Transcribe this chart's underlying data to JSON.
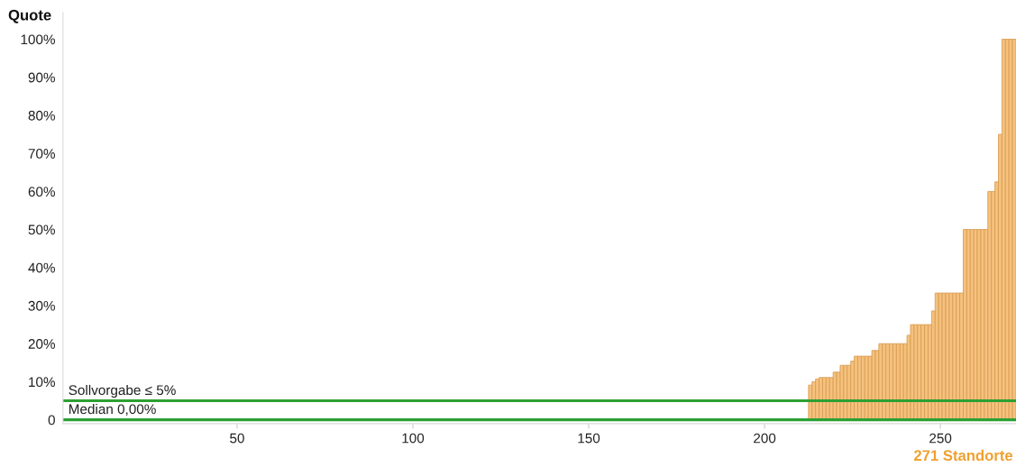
{
  "chart_data": {
    "type": "bar",
    "ylabel": "Quote",
    "xlabel": "271 Standorte",
    "x": [
      1,
      2,
      3,
      4,
      5,
      6,
      7,
      8,
      9,
      10,
      11,
      12,
      13,
      14,
      15,
      16,
      17,
      18,
      19,
      20,
      21,
      22,
      23,
      24,
      25,
      26,
      27,
      28,
      29,
      30,
      31,
      32,
      33,
      34,
      35,
      36,
      37,
      38,
      39,
      40,
      41,
      42,
      43,
      44,
      45,
      46,
      47,
      48,
      49,
      50,
      51,
      52,
      53,
      54,
      55,
      56,
      57,
      58,
      59,
      60,
      61,
      62,
      63,
      64,
      65,
      66,
      67,
      68,
      69,
      70,
      71,
      72,
      73,
      74,
      75,
      76,
      77,
      78,
      79,
      80,
      81,
      82,
      83,
      84,
      85,
      86,
      87,
      88,
      89,
      90,
      91,
      92,
      93,
      94,
      95,
      96,
      97,
      98,
      99,
      100,
      101,
      102,
      103,
      104,
      105,
      106,
      107,
      108,
      109,
      110,
      111,
      112,
      113,
      114,
      115,
      116,
      117,
      118,
      119,
      120,
      121,
      122,
      123,
      124,
      125,
      126,
      127,
      128,
      129,
      130,
      131,
      132,
      133,
      134,
      135,
      136,
      137,
      138,
      139,
      140,
      141,
      142,
      143,
      144,
      145,
      146,
      147,
      148,
      149,
      150,
      151,
      152,
      153,
      154,
      155,
      156,
      157,
      158,
      159,
      160,
      161,
      162,
      163,
      164,
      165,
      166,
      167,
      168,
      169,
      170,
      171,
      172,
      173,
      174,
      175,
      176,
      177,
      178,
      179,
      180,
      181,
      182,
      183,
      184,
      185,
      186,
      187,
      188,
      189,
      190,
      191,
      192,
      193,
      194,
      195,
      196,
      197,
      198,
      199,
      200,
      201,
      202,
      203,
      204,
      205,
      206,
      207,
      208,
      209,
      210,
      211,
      212,
      213,
      214,
      215,
      216,
      217,
      218,
      219,
      220,
      221,
      222,
      223,
      224,
      225,
      226,
      227,
      228,
      229,
      230,
      231,
      232,
      233,
      234,
      235,
      236,
      237,
      238,
      239,
      240,
      241,
      242,
      243,
      244,
      245,
      246,
      247,
      248,
      249,
      250,
      251,
      252,
      253,
      254,
      255,
      256,
      257,
      258,
      259,
      260,
      261,
      262,
      263,
      264,
      265,
      266,
      267,
      268,
      269,
      270,
      271
    ],
    "values": [
      0,
      0,
      0,
      0,
      0,
      0,
      0,
      0,
      0,
      0,
      0,
      0,
      0,
      0,
      0,
      0,
      0,
      0,
      0,
      0,
      0,
      0,
      0,
      0,
      0,
      0,
      0,
      0,
      0,
      0,
      0,
      0,
      0,
      0,
      0,
      0,
      0,
      0,
      0,
      0,
      0,
      0,
      0,
      0,
      0,
      0,
      0,
      0,
      0,
      0,
      0,
      0,
      0,
      0,
      0,
      0,
      0,
      0,
      0,
      0,
      0,
      0,
      0,
      0,
      0,
      0,
      0,
      0,
      0,
      0,
      0,
      0,
      0,
      0,
      0,
      0,
      0,
      0,
      0,
      0,
      0,
      0,
      0,
      0,
      0,
      0,
      0,
      0,
      0,
      0,
      0,
      0,
      0,
      0,
      0,
      0,
      0,
      0,
      0,
      0,
      0,
      0,
      0,
      0,
      0,
      0,
      0,
      0,
      0,
      0,
      0,
      0,
      0,
      0,
      0,
      0,
      0,
      0,
      0,
      0,
      0,
      0,
      0,
      0,
      0,
      0,
      0,
      0,
      0,
      0,
      0,
      0,
      0,
      0,
      0,
      0,
      0,
      0,
      0,
      0,
      0,
      0,
      0,
      0,
      0,
      0,
      0,
      0,
      0,
      0,
      0,
      0,
      0,
      0,
      0,
      0,
      0,
      0,
      0,
      0,
      0,
      0,
      0,
      0,
      0,
      0,
      0,
      0,
      0,
      0,
      0,
      0,
      0,
      0,
      0,
      0,
      0,
      0,
      0,
      0,
      0,
      0,
      0,
      0,
      0,
      0,
      0,
      0,
      0,
      0,
      0,
      0,
      0,
      0,
      0,
      0,
      0,
      0,
      0,
      0,
      0,
      0,
      0,
      0,
      0,
      0,
      0,
      0,
      0,
      0,
      0,
      0,
      9.1,
      10,
      10.7,
      11.1,
      11.1,
      11.1,
      11.1,
      12.5,
      12.5,
      14.3,
      14.3,
      14.3,
      15.4,
      16.7,
      16.7,
      16.7,
      16.7,
      16.7,
      18.2,
      18.2,
      20,
      20,
      20,
      20,
      20,
      20,
      20,
      20,
      22.2,
      25,
      25,
      25,
      25,
      25,
      25,
      28.6,
      33.3,
      33.3,
      33.3,
      33.3,
      33.3,
      33.3,
      33.3,
      33.3,
      50,
      50,
      50,
      50,
      50,
      50,
      50,
      60,
      60,
      62.5,
      75,
      100,
      100,
      100,
      100
    ],
    "color": "#f5c27e",
    "xlim": [
      0.5,
      271.5
    ],
    "ylim": [
      -1,
      107
    ],
    "xticks": [
      50,
      100,
      150,
      200,
      250
    ],
    "yticks": [
      0,
      {
        "value": 10,
        "label": "10%"
      },
      {
        "value": 20,
        "label": "20%"
      },
      {
        "value": 30,
        "label": "30%"
      },
      {
        "value": 40,
        "label": "40%"
      },
      {
        "value": 50,
        "label": "50%"
      },
      {
        "value": 60,
        "label": "60%"
      },
      {
        "value": 70,
        "label": "70%"
      },
      {
        "value": 80,
        "label": "80%"
      },
      {
        "value": 90,
        "label": "90%"
      },
      {
        "value": 100,
        "label": "100%"
      }
    ],
    "ref_lines": [
      {
        "axis": "y",
        "value": 5,
        "label": "Sollvorgabe ≤ 5%",
        "color": "#2ca033"
      },
      {
        "axis": "y",
        "value": 0,
        "label": "Median 0,00%",
        "color": "#2ca033"
      }
    ],
    "grid": false,
    "legend": false
  }
}
